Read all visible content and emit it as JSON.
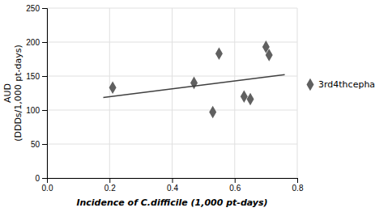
{
  "chart_data": {
    "type": "scatter",
    "xlabel": "Incidence of C.difficile (1,000 pt-days)",
    "ylabel": "AUD\n(DDDs/1,000 pt-days)",
    "series": [
      {
        "name": "3rd4thcepha",
        "type": "scatter",
        "marker": "diamond",
        "color": "#606060",
        "x": [
          0.21,
          0.47,
          0.53,
          0.55,
          0.63,
          0.65,
          0.7,
          0.71
        ],
        "values": [
          133,
          140,
          97,
          183,
          120,
          116,
          193,
          181
        ]
      },
      {
        "type": "line",
        "line_style": "solid",
        "color": "#404040",
        "x": [
          0.18,
          0.76
        ],
        "values": [
          118.44,
          152.08
        ]
      }
    ],
    "xlim": [
      0,
      0.8
    ],
    "ylim": [
      0,
      250
    ],
    "xticks": [
      {
        "value": 0,
        "label": "0.0"
      },
      0.2,
      0.4,
      0.6,
      0.8
    ],
    "yticks": [
      0,
      50,
      100,
      150,
      200,
      250
    ],
    "grid": true,
    "legend": "right"
  }
}
